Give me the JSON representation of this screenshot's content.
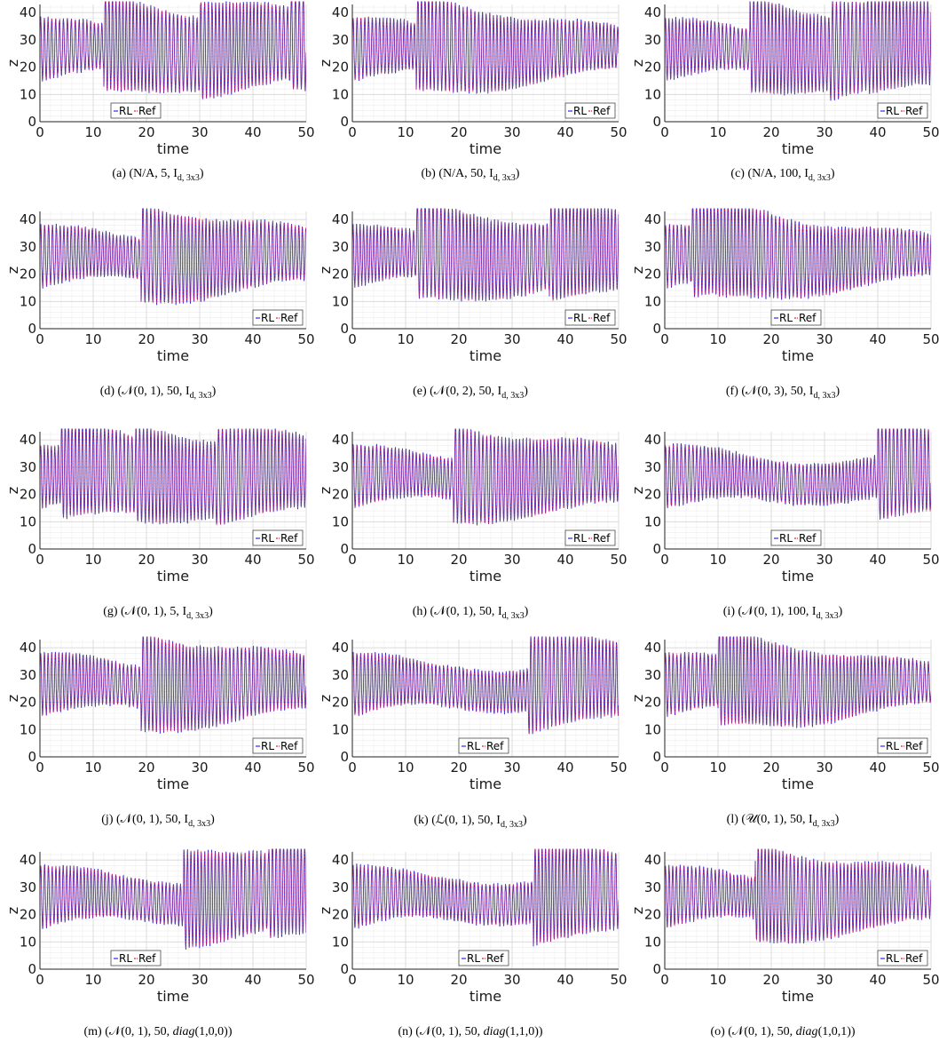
{
  "chart_data": [
    {
      "type": "line",
      "caption": "(a) (N/A, 5, Iᵈʷ ³ˣ³)",
      "caption_main": "(a) (N/A, 5, ",
      "caption_sub": "d, 3x3",
      "caption_end": ")",
      "xlabel": "time",
      "ylabel": "z",
      "xlim": [
        0,
        50
      ],
      "ylim": [
        0,
        43
      ],
      "xticks": [
        "0",
        "10",
        "20",
        "30",
        "40",
        "50"
      ],
      "yticks": [
        "0",
        "10",
        "20",
        "30",
        "40"
      ],
      "legend": [
        "RL",
        "Ref"
      ],
      "legend_position": "bottom-left",
      "resets": [
        12,
        30,
        47
      ],
      "seed": 3
    },
    {
      "type": "line",
      "caption_main": "(b) (N/A, 50, ",
      "caption_sub": "d, 3x3",
      "caption_end": ")",
      "xlabel": "time",
      "ylabel": "z",
      "xlim": [
        0,
        50
      ],
      "ylim": [
        0,
        43
      ],
      "xticks": [
        "0",
        "10",
        "20",
        "30",
        "40",
        "50"
      ],
      "yticks": [
        "0",
        "10",
        "20",
        "30",
        "40"
      ],
      "legend": [
        "RL",
        "Ref"
      ],
      "legend_position": "bottom-right",
      "resets": [
        12
      ],
      "seed": 5
    },
    {
      "type": "line",
      "caption_main": "(c) (N/A, 100, ",
      "caption_sub": "d, 3x3",
      "caption_end": ")",
      "xlabel": "time",
      "ylabel": "z",
      "xlim": [
        0,
        50
      ],
      "ylim": [
        0,
        43
      ],
      "xticks": [
        "0",
        "10",
        "20",
        "30",
        "40",
        "50"
      ],
      "yticks": [
        "0",
        "10",
        "20",
        "30",
        "40"
      ],
      "legend": [
        "RL",
        "Ref"
      ],
      "legend_position": "bottom-right",
      "resets": [
        16,
        31,
        38
      ],
      "seed": 7
    },
    {
      "type": "line",
      "caption_main": "(d) (𝒩(0, 1), 50, ",
      "caption_sub": "d, 3x3",
      "caption_end": ")",
      "xlabel": "time",
      "ylabel": "z",
      "xlim": [
        0,
        50
      ],
      "ylim": [
        0,
        43
      ],
      "xticks": [
        "0",
        "10",
        "20",
        "30",
        "40",
        "50"
      ],
      "yticks": [
        "0",
        "10",
        "20",
        "30",
        "40"
      ],
      "legend": [
        "RL",
        "Ref"
      ],
      "legend_position": "bottom-right",
      "resets": [
        19
      ],
      "seed": 11
    },
    {
      "type": "line",
      "caption_main": "(e) (𝒩(0, 2), 50, ",
      "caption_sub": "d, 3x3",
      "caption_end": ")",
      "xlabel": "time",
      "ylabel": "z",
      "xlim": [
        0,
        50
      ],
      "ylim": [
        0,
        43
      ],
      "xticks": [
        "0",
        "10",
        "20",
        "30",
        "40",
        "50"
      ],
      "yticks": [
        "0",
        "10",
        "20",
        "30",
        "40"
      ],
      "legend": [
        "RL",
        "Ref"
      ],
      "legend_position": "bottom-right",
      "resets": [
        12,
        37
      ],
      "seed": 13
    },
    {
      "type": "line",
      "caption_main": "(f) (𝒩(0, 3), 50, ",
      "caption_sub": "d, 3x3",
      "caption_end": ")",
      "xlabel": "time",
      "ylabel": "z",
      "xlim": [
        0,
        50
      ],
      "ylim": [
        0,
        43
      ],
      "xticks": [
        "0",
        "10",
        "20",
        "30",
        "40",
        "50"
      ],
      "yticks": [
        "0",
        "10",
        "20",
        "30",
        "40"
      ],
      "legend": [
        "RL",
        "Ref"
      ],
      "legend_position": "bottom-center",
      "resets": [
        5,
        10
      ],
      "seed": 17
    },
    {
      "type": "line",
      "caption_main": "(g) (𝒩(0, 1), 5, ",
      "caption_sub": "d, 3x3",
      "caption_end": ")",
      "xlabel": "time",
      "ylabel": "z",
      "xlim": [
        0,
        50
      ],
      "ylim": [
        0,
        43
      ],
      "xticks": [
        "0",
        "10",
        "20",
        "30",
        "40",
        "50"
      ],
      "yticks": [
        "0",
        "10",
        "20",
        "30",
        "40"
      ],
      "legend": [
        "RL",
        "Ref"
      ],
      "legend_position": "bottom-right",
      "resets": [
        4,
        18,
        33
      ],
      "seed": 19
    },
    {
      "type": "line",
      "caption_main": "(h) (𝒩(0, 1), 50, ",
      "caption_sub": "d, 3x3",
      "caption_end": ")",
      "xlabel": "time",
      "ylabel": "z",
      "xlim": [
        0,
        50
      ],
      "ylim": [
        0,
        43
      ],
      "xticks": [
        "0",
        "10",
        "20",
        "30",
        "40",
        "50"
      ],
      "yticks": [
        "0",
        "10",
        "20",
        "30",
        "40"
      ],
      "legend": [
        "RL",
        "Ref"
      ],
      "legend_position": "bottom-right",
      "resets": [
        19
      ],
      "seed": 23
    },
    {
      "type": "line",
      "caption_main": "(i) (𝒩(0, 1), 100, ",
      "caption_sub": "d, 3x3",
      "caption_end": ")",
      "xlabel": "time",
      "ylabel": "z",
      "xlim": [
        0,
        50
      ],
      "ylim": [
        0,
        43
      ],
      "xticks": [
        "0",
        "10",
        "20",
        "30",
        "40",
        "50"
      ],
      "yticks": [
        "0",
        "10",
        "20",
        "30",
        "40"
      ],
      "legend": [
        "RL",
        "Ref"
      ],
      "legend_position": "bottom-center",
      "resets": [
        40
      ],
      "seed": 29
    },
    {
      "type": "line",
      "caption_main": "(j) (𝒩(0, 1), 50, ",
      "caption_sub": "d, 3x3",
      "caption_end": ")",
      "xlabel": "time",
      "ylabel": "z",
      "xlim": [
        0,
        50
      ],
      "ylim": [
        0,
        43
      ],
      "xticks": [
        "0",
        "10",
        "20",
        "30",
        "40",
        "50"
      ],
      "yticks": [
        "0",
        "10",
        "20",
        "30",
        "40"
      ],
      "legend": [
        "RL",
        "Ref"
      ],
      "legend_position": "bottom-right",
      "resets": [
        19
      ],
      "seed": 31
    },
    {
      "type": "line",
      "caption_main": "(k) (ℒ(0, 1), 50, ",
      "caption_sub": "d, 3x3",
      "caption_end": ")",
      "xlabel": "time",
      "ylabel": "z",
      "xlim": [
        0,
        50
      ],
      "ylim": [
        0,
        43
      ],
      "xticks": [
        "0",
        "10",
        "20",
        "30",
        "40",
        "50"
      ],
      "yticks": [
        "0",
        "10",
        "20",
        "30",
        "40"
      ],
      "legend": [
        "RL",
        "Ref"
      ],
      "legend_position": "bottom-center",
      "resets": [
        33
      ],
      "seed": 37
    },
    {
      "type": "line",
      "caption_main": "(l) (𝒰(0, 1), 50, ",
      "caption_sub": "d, 3x3",
      "caption_end": ")",
      "xlabel": "time",
      "ylabel": "z",
      "xlim": [
        0,
        50
      ],
      "ylim": [
        0,
        43
      ],
      "xticks": [
        "0",
        "10",
        "20",
        "30",
        "40",
        "50"
      ],
      "yticks": [
        "0",
        "10",
        "20",
        "30",
        "40"
      ],
      "legend": [
        "RL",
        "Ref"
      ],
      "legend_position": "bottom-right",
      "resets": [
        10
      ],
      "seed": 41
    },
    {
      "type": "line",
      "caption_main": "(m) (𝒩(0, 1), 50, ",
      "caption_diag": "diag",
      "caption_tail": "(1,0,0))",
      "xlabel": "time",
      "ylabel": "z",
      "xlim": [
        0,
        50
      ],
      "ylim": [
        0,
        43
      ],
      "xticks": [
        "0",
        "10",
        "20",
        "30",
        "40",
        "50"
      ],
      "yticks": [
        "0",
        "10",
        "20",
        "30",
        "40"
      ],
      "legend": [
        "RL",
        "Ref"
      ],
      "legend_position": "bottom-left",
      "resets": [
        27,
        43
      ],
      "seed": 43
    },
    {
      "type": "line",
      "caption_main": "(n) (𝒩(0, 1), 50, ",
      "caption_diag": "diag",
      "caption_tail": "(1,1,0))",
      "xlabel": "time",
      "ylabel": "z",
      "xlim": [
        0,
        50
      ],
      "ylim": [
        0,
        43
      ],
      "xticks": [
        "0",
        "10",
        "20",
        "30",
        "40",
        "50"
      ],
      "yticks": [
        "0",
        "10",
        "20",
        "30",
        "40"
      ],
      "legend": [
        "RL",
        "Ref"
      ],
      "legend_position": "bottom-center",
      "resets": [
        34
      ],
      "seed": 47
    },
    {
      "type": "line",
      "caption_main": "(o) (𝒩(0, 1), 50, ",
      "caption_diag": "diag",
      "caption_tail": "(1,0,1))",
      "xlabel": "time",
      "ylabel": "z",
      "xlim": [
        0,
        50
      ],
      "ylim": [
        0,
        43
      ],
      "xticks": [
        "0",
        "10",
        "20",
        "30",
        "40",
        "50"
      ],
      "yticks": [
        "0",
        "10",
        "20",
        "30",
        "40"
      ],
      "legend": [
        "RL",
        "Ref"
      ],
      "legend_position": "bottom-right",
      "resets": [
        17
      ],
      "seed": 53
    }
  ],
  "colors": {
    "rl": "#2b2bd6",
    "ref": "#e8283c",
    "grid_major": "#d6d6d6",
    "grid_minor": "#ececec",
    "axis": "#222222"
  },
  "caption_letter": "I"
}
